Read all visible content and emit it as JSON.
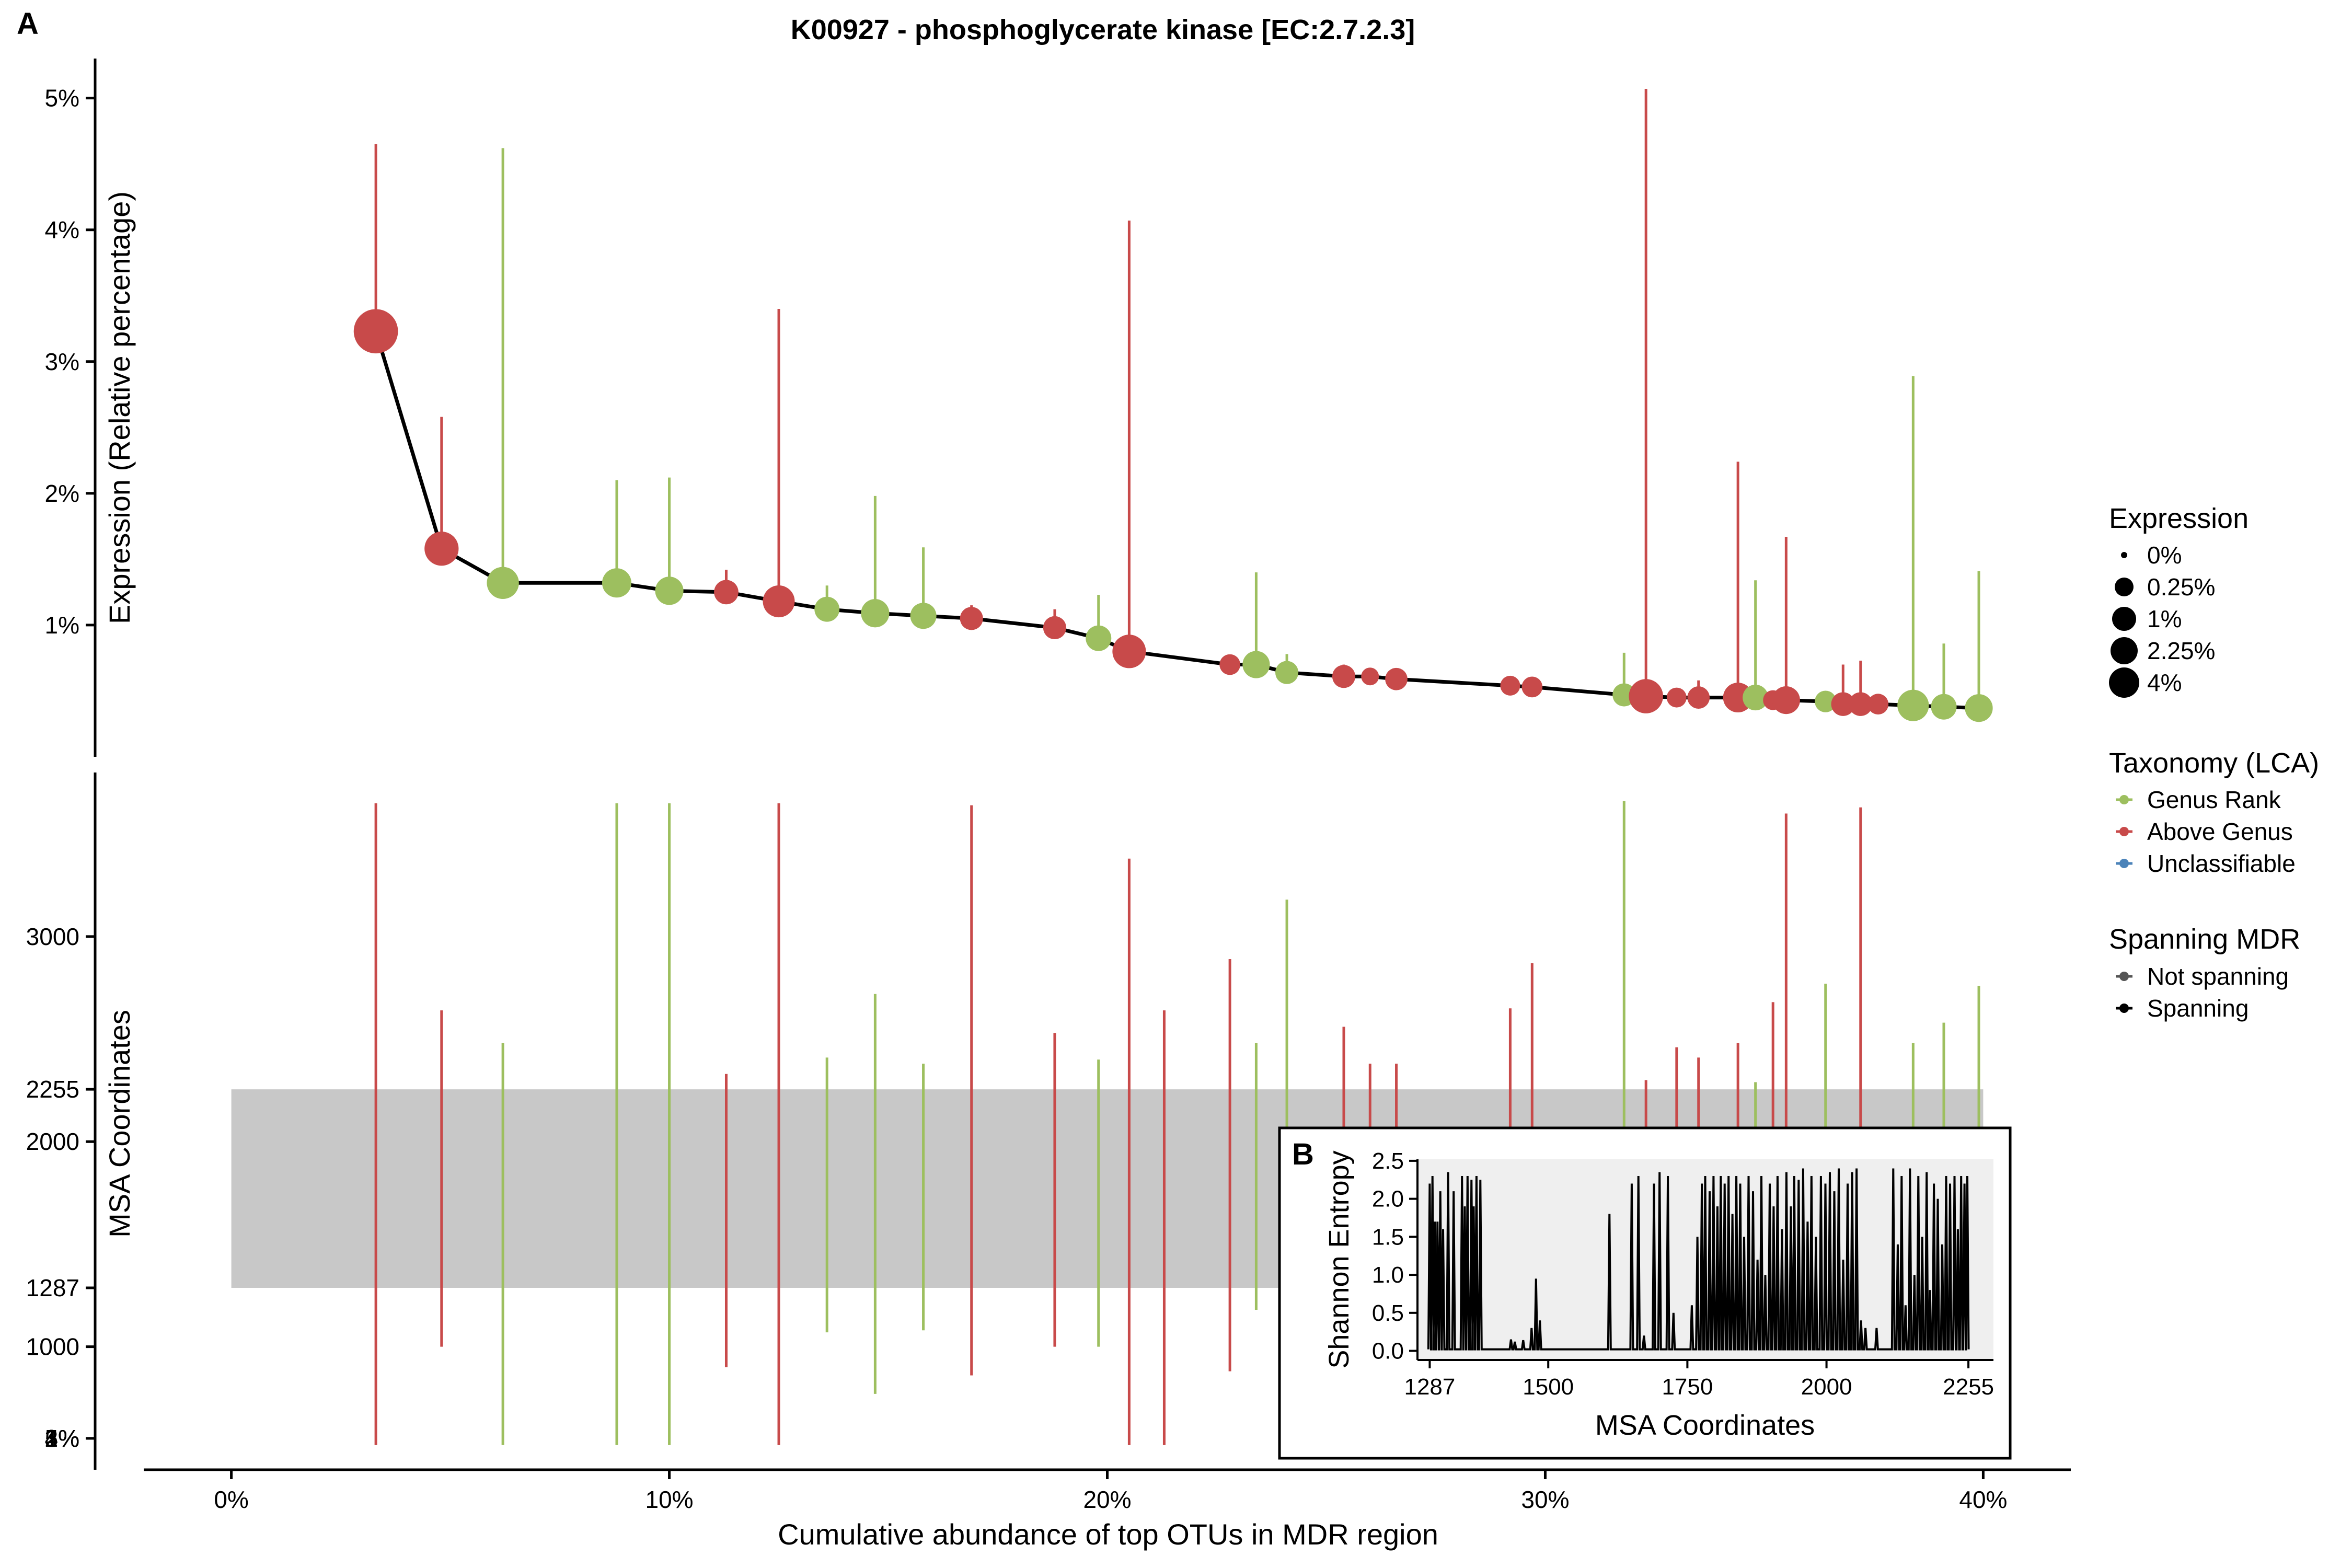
{
  "chart_data": [
    {
      "panel": "A",
      "type": "scatter",
      "title": "K00927 - phosphoglycerate kinase [EC:2.7.2.3]",
      "xlabel": "Cumulative abundance of top OTUs in MDR region",
      "ylabel": "Expression (Relative percentage)",
      "x_tick_labels": [
        "0%",
        "10%",
        "20%",
        "30%",
        "40%"
      ],
      "x_tick_values": [
        0,
        10,
        20,
        30,
        40
      ],
      "y_tick_labels": [
        "1%",
        "2%",
        "3%",
        "4%",
        "5%"
      ],
      "y_tick_values": [
        1,
        2,
        3,
        4,
        5
      ],
      "xlim": [
        -2,
        42
      ],
      "ylim": [
        0.0,
        5.3
      ],
      "points": [
        {
          "x": 3.3,
          "y": 3.23,
          "tax": "above",
          "top": 4.65,
          "size": 3.23
        },
        {
          "x": 4.8,
          "y": 1.58,
          "tax": "above",
          "top": 2.58,
          "size": 1.58
        },
        {
          "x": 6.2,
          "y": 1.32,
          "tax": "genus",
          "top": 4.62,
          "size": 1.32
        },
        {
          "x": 8.8,
          "y": 1.32,
          "tax": "genus",
          "top": 2.1,
          "size": 1.0
        },
        {
          "x": 10.0,
          "y": 1.26,
          "tax": "genus",
          "top": 2.12,
          "size": 0.9
        },
        {
          "x": 11.3,
          "y": 1.25,
          "tax": "above",
          "top": 1.42,
          "size": 0.55
        },
        {
          "x": 12.5,
          "y": 1.18,
          "tax": "above",
          "top": 3.4,
          "size": 1.3
        },
        {
          "x": 13.6,
          "y": 1.12,
          "tax": "genus",
          "top": 1.3,
          "size": 0.6
        },
        {
          "x": 14.7,
          "y": 1.09,
          "tax": "genus",
          "top": 1.98,
          "size": 0.9
        },
        {
          "x": 15.8,
          "y": 1.07,
          "tax": "genus",
          "top": 1.59,
          "size": 0.7
        },
        {
          "x": 16.9,
          "y": 1.05,
          "tax": "above",
          "top": 1.15,
          "size": 0.45
        },
        {
          "x": 18.8,
          "y": 0.98,
          "tax": "above",
          "top": 1.12,
          "size": 0.45
        },
        {
          "x": 19.8,
          "y": 0.9,
          "tax": "genus",
          "top": 1.23,
          "size": 0.65
        },
        {
          "x": 20.5,
          "y": 0.8,
          "tax": "above",
          "top": 4.07,
          "size": 1.5
        },
        {
          "x": 22.8,
          "y": 0.7,
          "tax": "above",
          "top": 0.72,
          "size": 0.3
        },
        {
          "x": 23.4,
          "y": 0.7,
          "tax": "genus",
          "top": 1.4,
          "size": 0.8
        },
        {
          "x": 24.1,
          "y": 0.64,
          "tax": "genus",
          "top": 0.78,
          "size": 0.45
        },
        {
          "x": 25.4,
          "y": 0.61,
          "tax": "above",
          "top": 0.7,
          "size": 0.45
        },
        {
          "x": 26.0,
          "y": 0.61,
          "tax": "above",
          "top": 0.64,
          "size": 0.15
        },
        {
          "x": 26.6,
          "y": 0.59,
          "tax": "above",
          "top": 0.65,
          "size": 0.4
        },
        {
          "x": 29.2,
          "y": 0.54,
          "tax": "above",
          "top": 0.55,
          "size": 0.25
        },
        {
          "x": 29.7,
          "y": 0.53,
          "tax": "above",
          "top": 0.58,
          "size": 0.3
        },
        {
          "x": 31.8,
          "y": 0.47,
          "tax": "genus",
          "top": 0.79,
          "size": 0.45
        },
        {
          "x": 32.3,
          "y": 0.46,
          "tax": "above",
          "top": 5.07,
          "size": 1.6
        },
        {
          "x": 33.0,
          "y": 0.45,
          "tax": "above",
          "top": 0.48,
          "size": 0.25
        },
        {
          "x": 33.5,
          "y": 0.45,
          "tax": "above",
          "top": 0.58,
          "size": 0.4
        },
        {
          "x": 34.4,
          "y": 0.45,
          "tax": "above",
          "top": 2.24,
          "size": 1.05
        },
        {
          "x": 34.8,
          "y": 0.45,
          "tax": "genus",
          "top": 1.34,
          "size": 0.65
        },
        {
          "x": 35.2,
          "y": 0.43,
          "tax": "above",
          "top": 0.46,
          "size": 0.25
        },
        {
          "x": 35.5,
          "y": 0.43,
          "tax": "above",
          "top": 1.67,
          "size": 0.85
        },
        {
          "x": 36.4,
          "y": 0.42,
          "tax": "genus",
          "top": 0.44,
          "size": 0.35
        },
        {
          "x": 36.8,
          "y": 0.4,
          "tax": "above",
          "top": 0.7,
          "size": 0.5
        },
        {
          "x": 37.2,
          "y": 0.4,
          "tax": "above",
          "top": 0.73,
          "size": 0.5
        },
        {
          "x": 37.6,
          "y": 0.4,
          "tax": "above",
          "top": 0.42,
          "size": 0.3
        },
        {
          "x": 38.4,
          "y": 0.39,
          "tax": "genus",
          "top": 2.89,
          "size": 1.25
        },
        {
          "x": 39.1,
          "y": 0.38,
          "tax": "genus",
          "top": 0.86,
          "size": 0.65
        },
        {
          "x": 39.9,
          "y": 0.37,
          "tax": "genus",
          "top": 1.41,
          "size": 0.85
        }
      ]
    },
    {
      "panel": "A-lower",
      "type": "range",
      "ylabel": "MSA Coordinates",
      "y_tick_labels": [
        "1000",
        "1287",
        "2000",
        "2255",
        "3000"
      ],
      "y_tick_values": [
        1000,
        1287,
        2000,
        2255,
        3000
      ],
      "y_zero_tick_labels": [
        "4%",
        "5%",
        "3%",
        "1%",
        "2%"
      ],
      "ylim": [
        400,
        3800
      ],
      "mdr_region": [
        1287,
        2255
      ],
      "ranges": [
        {
          "x": 3.3,
          "low": 520,
          "high": 3650,
          "tax": "above"
        },
        {
          "x": 4.8,
          "low": 1000,
          "high": 2640,
          "tax": "above"
        },
        {
          "x": 6.2,
          "low": 520,
          "high": 2480,
          "tax": "genus"
        },
        {
          "x": 8.8,
          "low": 520,
          "high": 3650,
          "tax": "genus"
        },
        {
          "x": 10.0,
          "low": 520,
          "high": 3650,
          "tax": "genus"
        },
        {
          "x": 11.3,
          "low": 900,
          "high": 2330,
          "tax": "above"
        },
        {
          "x": 12.5,
          "low": 520,
          "high": 3650,
          "tax": "above"
        },
        {
          "x": 13.6,
          "low": 1070,
          "high": 2410,
          "tax": "genus"
        },
        {
          "x": 14.7,
          "low": 770,
          "high": 2720,
          "tax": "genus"
        },
        {
          "x": 15.8,
          "low": 1080,
          "high": 2380,
          "tax": "genus"
        },
        {
          "x": 16.9,
          "low": 860,
          "high": 3640,
          "tax": "above"
        },
        {
          "x": 18.8,
          "low": 1000,
          "high": 2530,
          "tax": "above"
        },
        {
          "x": 19.8,
          "low": 1000,
          "high": 2400,
          "tax": "genus"
        },
        {
          "x": 20.5,
          "low": 520,
          "high": 3380,
          "tax": "above"
        },
        {
          "x": 21.3,
          "low": 520,
          "high": 2640,
          "tax": "above"
        },
        {
          "x": 22.8,
          "low": 880,
          "high": 2890,
          "tax": "above"
        },
        {
          "x": 23.4,
          "low": 1180,
          "high": 2480,
          "tax": "genus"
        },
        {
          "x": 24.1,
          "low": 1300,
          "high": 3180,
          "tax": "genus"
        },
        {
          "x": 25.4,
          "low": 1350,
          "high": 2560,
          "tax": "above"
        },
        {
          "x": 26.0,
          "low": 1350,
          "high": 2380,
          "tax": "above"
        },
        {
          "x": 26.6,
          "low": 1350,
          "high": 2380,
          "tax": "above"
        },
        {
          "x": 29.2,
          "low": 1350,
          "high": 2650,
          "tax": "above"
        },
        {
          "x": 29.7,
          "low": 1350,
          "high": 2870,
          "tax": "above"
        },
        {
          "x": 31.8,
          "low": 1350,
          "high": 3660,
          "tax": "genus"
        },
        {
          "x": 32.3,
          "low": 1350,
          "high": 2300,
          "tax": "above"
        },
        {
          "x": 33.0,
          "low": 1350,
          "high": 2460,
          "tax": "above"
        },
        {
          "x": 33.5,
          "low": 1350,
          "high": 2410,
          "tax": "above"
        },
        {
          "x": 34.4,
          "low": 1350,
          "high": 2480,
          "tax": "above"
        },
        {
          "x": 34.8,
          "low": 1350,
          "high": 2290,
          "tax": "genus"
        },
        {
          "x": 35.2,
          "low": 1350,
          "high": 2680,
          "tax": "above"
        },
        {
          "x": 35.5,
          "low": 1350,
          "high": 3600,
          "tax": "above"
        },
        {
          "x": 36.4,
          "low": 1350,
          "high": 2770,
          "tax": "genus"
        },
        {
          "x": 37.2,
          "low": 1350,
          "high": 3630,
          "tax": "above"
        },
        {
          "x": 38.4,
          "low": 1350,
          "high": 2480,
          "tax": "genus"
        },
        {
          "x": 39.1,
          "low": 1350,
          "high": 2580,
          "tax": "genus"
        },
        {
          "x": 39.9,
          "low": 1350,
          "high": 2760,
          "tax": "genus"
        }
      ]
    },
    {
      "panel": "B",
      "type": "line",
      "xlabel": "MSA Coordinates",
      "ylabel": "Shannon Entropy",
      "x_tick_labels": [
        "1287",
        "1500",
        "1750",
        "2000",
        "2255"
      ],
      "x_tick_values": [
        1287,
        1500,
        1750,
        2000,
        2255
      ],
      "y_tick_labels": [
        "0.0",
        "0.5",
        "1.0",
        "1.5",
        "2.0",
        "2.5"
      ],
      "y_tick_values": [
        0,
        0.5,
        1.0,
        1.5,
        2.0,
        2.5
      ],
      "xlim": [
        1265,
        2300
      ],
      "ylim": [
        -0.12,
        2.52
      ],
      "spikes": [
        [
          1287,
          2.2
        ],
        [
          1292,
          2.3
        ],
        [
          1296,
          1.7
        ],
        [
          1301,
          1.7
        ],
        [
          1306,
          2.1
        ],
        [
          1311,
          1.6
        ],
        [
          1320,
          2.35
        ],
        [
          1330,
          2.1
        ],
        [
          1345,
          2.3
        ],
        [
          1350,
          1.9
        ],
        [
          1355,
          2.3
        ],
        [
          1362,
          2.25
        ],
        [
          1366,
          1.9
        ],
        [
          1371,
          2.3
        ],
        [
          1378,
          2.25
        ],
        [
          1433,
          0.15
        ],
        [
          1440,
          0.12
        ],
        [
          1455,
          0.14
        ],
        [
          1470,
          0.3
        ],
        [
          1478,
          0.95
        ],
        [
          1485,
          0.4
        ],
        [
          1610,
          1.8
        ],
        [
          1650,
          2.2
        ],
        [
          1662,
          2.3
        ],
        [
          1672,
          0.2
        ],
        [
          1690,
          2.2
        ],
        [
          1700,
          2.35
        ],
        [
          1715,
          2.3
        ],
        [
          1725,
          0.5
        ],
        [
          1758,
          0.6
        ],
        [
          1768,
          1.5
        ],
        [
          1776,
          2.2
        ],
        [
          1782,
          2.3
        ],
        [
          1790,
          2.1
        ],
        [
          1797,
          2.3
        ],
        [
          1804,
          1.9
        ],
        [
          1810,
          2.3
        ],
        [
          1817,
          2.2
        ],
        [
          1824,
          2.3
        ],
        [
          1831,
          1.8
        ],
        [
          1838,
          2.3
        ],
        [
          1845,
          2.2
        ],
        [
          1852,
          1.5
        ],
        [
          1860,
          2.3
        ],
        [
          1868,
          2.1
        ],
        [
          1876,
          1.2
        ],
        [
          1883,
          2.3
        ],
        [
          1890,
          1.0
        ],
        [
          1898,
          2.2
        ],
        [
          1905,
          1.9
        ],
        [
          1912,
          2.3
        ],
        [
          1920,
          1.6
        ],
        [
          1928,
          2.35
        ],
        [
          1936,
          1.9
        ],
        [
          1942,
          2.3
        ],
        [
          1950,
          2.25
        ],
        [
          1958,
          2.4
        ],
        [
          1966,
          1.7
        ],
        [
          1973,
          2.3
        ],
        [
          1981,
          1.5
        ],
        [
          1990,
          2.3
        ],
        [
          1998,
          2.2
        ],
        [
          2006,
          2.35
        ],
        [
          2014,
          2.1
        ],
        [
          2022,
          2.4
        ],
        [
          2030,
          1.2
        ],
        [
          2038,
          2.2
        ],
        [
          2046,
          2.35
        ],
        [
          2054,
          2.4
        ],
        [
          2062,
          0.4
        ],
        [
          2070,
          0.3
        ],
        [
          2090,
          0.3
        ],
        [
          2120,
          2.4
        ],
        [
          2128,
          1.4
        ],
        [
          2135,
          2.3
        ],
        [
          2142,
          0.6
        ],
        [
          2150,
          2.4
        ],
        [
          2158,
          1.0
        ],
        [
          2165,
          2.3
        ],
        [
          2172,
          1.5
        ],
        [
          2180,
          2.35
        ],
        [
          2186,
          0.8
        ],
        [
          2193,
          2.2
        ],
        [
          2200,
          2.0
        ],
        [
          2208,
          1.4
        ],
        [
          2215,
          2.3
        ],
        [
          2222,
          2.2
        ],
        [
          2230,
          2.3
        ],
        [
          2236,
          1.6
        ],
        [
          2242,
          2.3
        ],
        [
          2248,
          2.2
        ],
        [
          2253,
          2.3
        ]
      ]
    }
  ],
  "legend": {
    "expression": {
      "title": "Expression",
      "items": [
        {
          "label": "0%",
          "r": 6
        },
        {
          "label": "0.25%",
          "r": 18
        },
        {
          "label": "1%",
          "r": 23
        },
        {
          "label": "2.25%",
          "r": 26
        },
        {
          "label": "4%",
          "r": 29
        }
      ]
    },
    "taxonomy": {
      "title": "Taxonomy (LCA)",
      "items": [
        {
          "label": "Genus Rank",
          "color": "#9dbf5f"
        },
        {
          "label": "Above Genus",
          "color": "#c84a4a"
        },
        {
          "label": "Unclassifiable",
          "color": "#4b83b9"
        }
      ]
    },
    "spanning": {
      "title": "Spanning MDR",
      "items": [
        {
          "label": "Not spanning",
          "color": "#555555"
        },
        {
          "label": "Spanning",
          "color": "#000000"
        }
      ]
    }
  },
  "colors": {
    "genus": "#9dbf5f",
    "above": "#c84a4a",
    "unclassifiable": "#4b83b9",
    "mdr_band": "#c8c8c8",
    "inset_bg": "#efefef"
  }
}
